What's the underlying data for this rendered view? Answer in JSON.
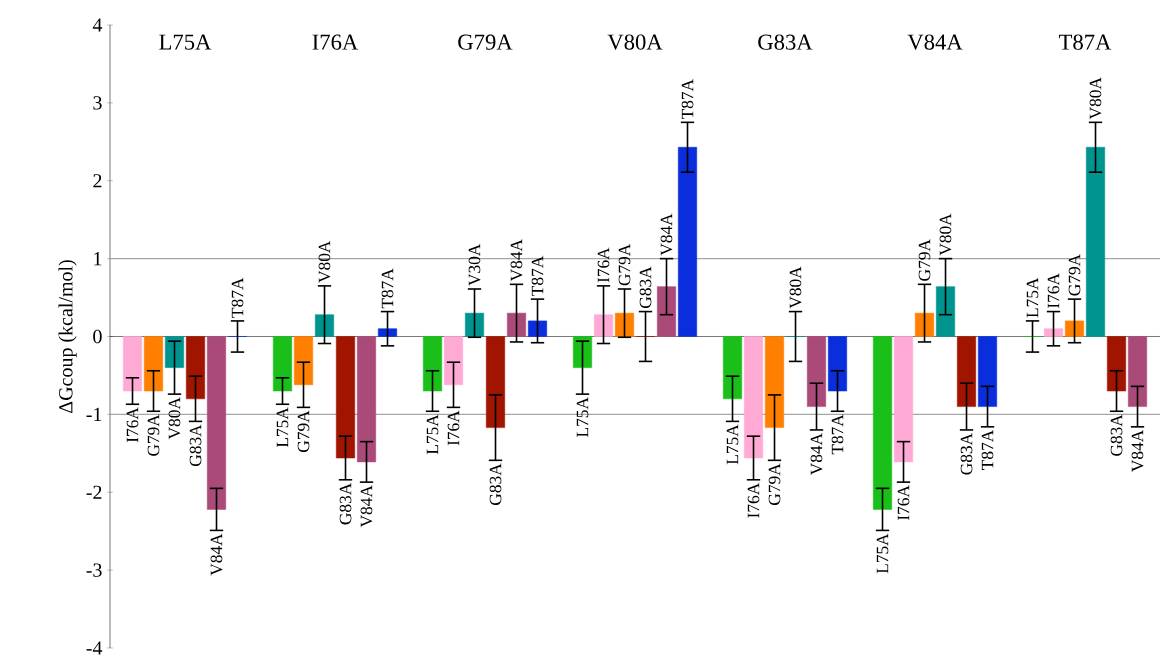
{
  "chart_data": {
    "type": "bar",
    "ylabel": "ΔGcoup (kcal/mol)",
    "categories": [
      "L75A",
      "I76A",
      "G79A",
      "V80A",
      "G83A",
      "V84A",
      "T87A"
    ],
    "ylim": [
      -4,
      4
    ],
    "yticks": [
      -4,
      -3,
      -2,
      -1,
      0,
      1,
      2,
      3,
      4
    ],
    "ref_lines": [
      {
        "axis": "y",
        "value": 1,
        "color": "#a6a6a6"
      },
      {
        "axis": "y",
        "value": -1,
        "color": "#a6a6a6"
      }
    ],
    "series": [
      {
        "color": "#1abf1a",
        "values": [
          null,
          -0.7,
          -0.7,
          -0.4,
          -0.8,
          -2.22,
          0
        ],
        "errors": [
          null,
          0.17,
          0.26,
          0.34,
          0.29,
          0.27,
          0.2
        ],
        "value_labels": [
          null,
          "L75A",
          "L75A",
          "L75A",
          "L75A",
          "L75A",
          "L75A"
        ]
      },
      {
        "color": "#ffaad5",
        "values": [
          -0.7,
          null,
          -0.62,
          0.28,
          -1.56,
          -1.61,
          0.1
        ],
        "errors": [
          0.17,
          null,
          0.29,
          0.37,
          0.28,
          0.26,
          0.22
        ],
        "value_labels": [
          "I76A",
          null,
          "I76A",
          "I76A",
          "I76A",
          "I76A",
          "I76A"
        ]
      },
      {
        "color": "#ff7f00",
        "values": [
          -0.7,
          -0.62,
          null,
          0.3,
          -1.17,
          0.3,
          0.2
        ],
        "errors": [
          0.26,
          0.29,
          null,
          0.31,
          0.42,
          0.37,
          0.28
        ],
        "value_labels": [
          "G79A",
          "G79A",
          null,
          "G79A",
          "G79A",
          "G79A",
          "G79A"
        ]
      },
      {
        "color": "#00948f",
        "values": [
          -0.4,
          0.28,
          0.3,
          null,
          0,
          0.64,
          2.43
        ],
        "errors": [
          0.34,
          0.37,
          0.31,
          null,
          0.32,
          0.36,
          0.32
        ],
        "value_labels": [
          "V80A",
          "V80A",
          "V30A",
          null,
          "V80A",
          "V80A",
          "V80A"
        ]
      },
      {
        "color": "#a01400",
        "values": [
          -0.8,
          -1.56,
          -1.17,
          0,
          null,
          -0.9,
          -0.7
        ],
        "errors": [
          0.29,
          0.28,
          0.42,
          0.32,
          null,
          0.3,
          0.26
        ],
        "value_labels": [
          "G83A",
          "G83A",
          "G83A",
          "G83A",
          null,
          "G83A",
          "G83A"
        ]
      },
      {
        "color": "#aa4a78",
        "values": [
          -2.22,
          -1.61,
          0.3,
          0.64,
          -0.9,
          null,
          -0.9
        ],
        "errors": [
          0.27,
          0.26,
          0.37,
          0.36,
          0.3,
          null,
          0.26
        ],
        "value_labels": [
          "V84A",
          "V84A",
          "V84A",
          "V84A",
          "V84A",
          null,
          "V84A"
        ]
      },
      {
        "color": "#0a2edc",
        "values": [
          0,
          0.1,
          0.2,
          2.43,
          -0.7,
          -0.9,
          null
        ],
        "errors": [
          0.2,
          0.22,
          0.28,
          0.32,
          0.26,
          0.26,
          null
        ],
        "value_labels": [
          "T87A",
          "T87A",
          "T87A",
          "T87A",
          "T87A",
          "T87A",
          null
        ]
      }
    ]
  }
}
